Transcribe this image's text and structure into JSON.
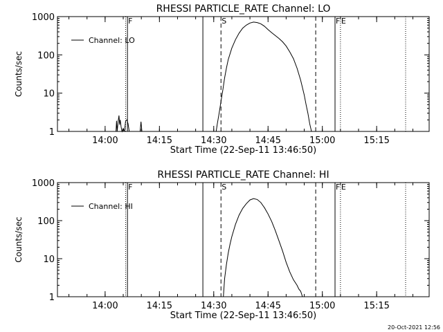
{
  "chart_data": [
    {
      "type": "line",
      "title": "RHESSI PARTICLE_RATE Channel: LO",
      "xlabel": "Start Time (22-Sep-11 13:46:50)",
      "ylabel": "Counts/sec",
      "y_scale": "log",
      "ylim": [
        1,
        1000
      ],
      "y_ticks": [
        1,
        10,
        100,
        1000
      ],
      "y_tick_labels": [
        "1",
        "10",
        "100",
        "1000"
      ],
      "x_ticks": [
        "14:00",
        "14:15",
        "14:30",
        "14:45",
        "15:00",
        "15:15"
      ],
      "legend": "Channel: LO",
      "legend_position": "top-left",
      "markers": [
        {
          "time": "14:05:40",
          "style": "dotted",
          "label": ""
        },
        {
          "time": "14:06:10",
          "style": "solid",
          "label": "F"
        },
        {
          "time": "14:27:00",
          "style": "solid",
          "label": ""
        },
        {
          "time": "14:32:00",
          "style": "dashed",
          "label": "S"
        },
        {
          "time": "14:58:10",
          "style": "dashed",
          "label": ""
        },
        {
          "time": "15:03:30",
          "style": "solid",
          "label": "F"
        },
        {
          "time": "15:05:00",
          "style": "dotted",
          "label": "E"
        },
        {
          "time": "15:23:00",
          "style": "dotted",
          "label": ""
        }
      ],
      "series": [
        {
          "name": "",
          "x": [
            "14:03:00",
            "14:03:10",
            "14:03:20",
            "14:03:35",
            "14:03:50",
            "14:04:00",
            "14:04:10",
            "14:04:25",
            "14:04:40",
            "14:05:00",
            "14:05:20",
            "14:05:40",
            "14:06:00",
            "14:06:20",
            "14:06:40",
            "14:07:00"
          ],
          "y": [
            1.0,
            1.9,
            1.0,
            1.8,
            2.6,
            1.5,
            2.0,
            1.3,
            1.0,
            1.2,
            1.0,
            1.9,
            2.0,
            1.6,
            1.0,
            1.0
          ]
        },
        {
          "name": "",
          "x": [
            "14:09:40",
            "14:09:55",
            "14:10:10"
          ],
          "y": [
            1.0,
            1.8,
            1.0
          ]
        },
        {
          "name": "",
          "x": [
            "14:30:40",
            "14:31:00",
            "14:31:30",
            "14:32:00",
            "14:32:30",
            "14:33:00",
            "14:33:30",
            "14:34:00",
            "14:35:00",
            "14:36:00",
            "14:37:00",
            "14:38:00",
            "14:39:00",
            "14:40:00",
            "14:41:00",
            "14:42:00",
            "14:43:00",
            "14:44:00",
            "14:45:00",
            "14:46:00",
            "14:47:00",
            "14:48:00",
            "14:49:00",
            "14:50:00",
            "14:51:00",
            "14:52:00",
            "14:53:00",
            "14:54:00",
            "14:55:00",
            "14:55:30",
            "14:56:00",
            "14:56:30",
            "14:57:00"
          ],
          "y": [
            1.0,
            1.6,
            3.0,
            6.0,
            12,
            25,
            45,
            75,
            150,
            250,
            370,
            500,
            600,
            680,
            720,
            700,
            650,
            560,
            460,
            380,
            320,
            270,
            220,
            170,
            120,
            80,
            45,
            22,
            9,
            5,
            3,
            1.6,
            1.0
          ]
        }
      ]
    },
    {
      "type": "line",
      "title": "RHESSI PARTICLE_RATE Channel: HI",
      "xlabel": "Start Time (22-Sep-11 13:46:50)",
      "ylabel": "Counts/sec",
      "y_scale": "log",
      "ylim": [
        1,
        1000
      ],
      "y_ticks": [
        1,
        10,
        100,
        1000
      ],
      "y_tick_labels": [
        "1",
        "10",
        "100",
        "1000"
      ],
      "x_ticks": [
        "14:00",
        "14:15",
        "14:30",
        "14:45",
        "15:00",
        "15:15"
      ],
      "legend": "Channel: HI",
      "legend_position": "top-left",
      "markers": [
        {
          "time": "14:05:40",
          "style": "dotted",
          "label": ""
        },
        {
          "time": "14:06:10",
          "style": "solid",
          "label": "F"
        },
        {
          "time": "14:27:00",
          "style": "solid",
          "label": ""
        },
        {
          "time": "14:32:00",
          "style": "dashed",
          "label": "S"
        },
        {
          "time": "14:58:10",
          "style": "dashed",
          "label": ""
        },
        {
          "time": "15:03:30",
          "style": "solid",
          "label": "F"
        },
        {
          "time": "15:05:00",
          "style": "dotted",
          "label": "E"
        },
        {
          "time": "15:23:00",
          "style": "dotted",
          "label": ""
        }
      ],
      "series": [
        {
          "name": "",
          "x": [
            "14:32:40",
            "14:33:00",
            "14:33:30",
            "14:34:00",
            "14:34:30",
            "14:35:00",
            "14:36:00",
            "14:37:00",
            "14:38:00",
            "14:39:00",
            "14:40:00",
            "14:41:00",
            "14:42:00",
            "14:43:00",
            "14:44:00",
            "14:45:00",
            "14:46:00",
            "14:47:00",
            "14:48:00",
            "14:49:00",
            "14:50:00",
            "14:51:00",
            "14:52:00",
            "14:53:00",
            "14:53:30",
            "14:54:00",
            "14:54:15",
            "14:54:30"
          ],
          "y": [
            1.0,
            3.0,
            7.0,
            14,
            24,
            38,
            80,
            140,
            210,
            280,
            350,
            380,
            360,
            300,
            220,
            150,
            95,
            55,
            30,
            16,
            8,
            4.5,
            2.8,
            2.0,
            1.6,
            1.4,
            1.2,
            1.0
          ]
        }
      ]
    }
  ],
  "footer": {
    "timestamp": "20-Oct-2021 12:56"
  }
}
